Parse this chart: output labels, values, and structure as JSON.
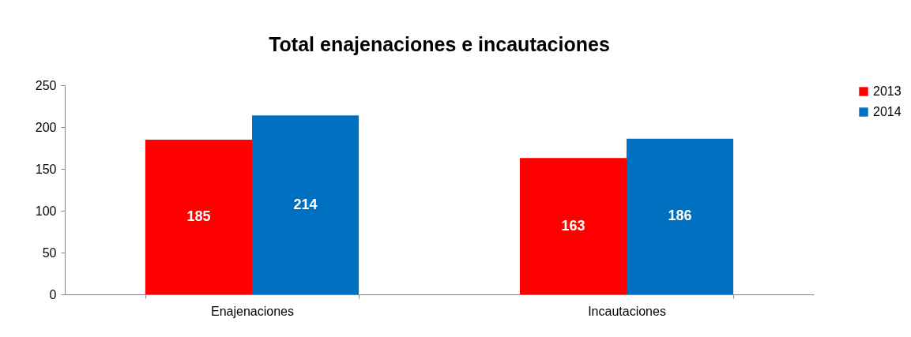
{
  "chart_data": {
    "type": "bar",
    "title": "Total enajenaciones e incautaciones",
    "categories": [
      "Enajenaciones",
      "Incautaciones"
    ],
    "series": [
      {
        "name": "2013",
        "color": "#ff0000",
        "values": [
          185,
          163
        ]
      },
      {
        "name": "2014",
        "color": "#0070c0",
        "values": [
          214,
          186
        ]
      }
    ],
    "ylim": [
      0,
      250
    ],
    "yticks": [
      0,
      50,
      100,
      150,
      200,
      250
    ],
    "grid": false,
    "legend": "right",
    "data_labels": true
  }
}
